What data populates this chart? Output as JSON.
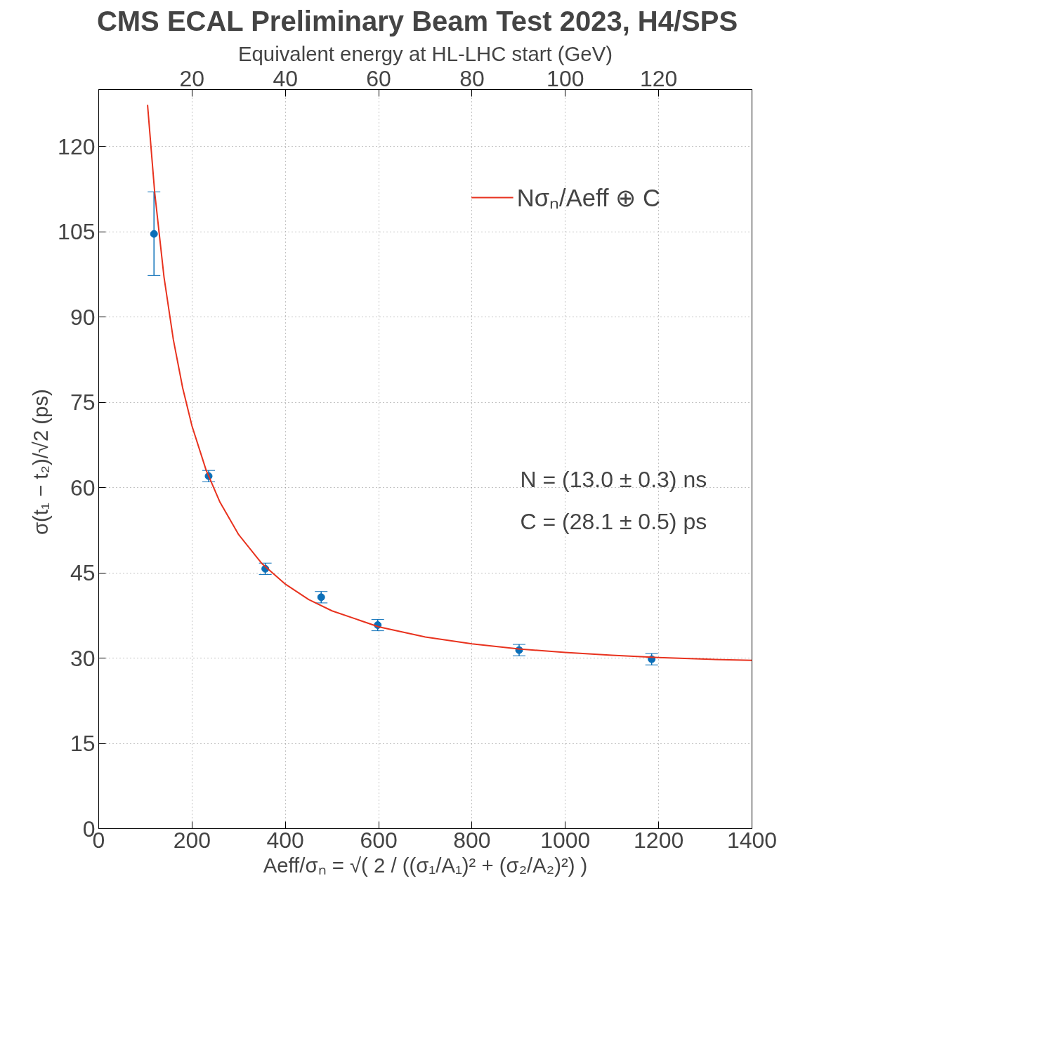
{
  "chart_data": {
    "type": "scatter",
    "title": "CMS ECAL Preliminary   Beam Test 2023, H4/SPS",
    "x2label": "Equivalent energy at HL-LHC start (GeV)",
    "xlabel": "Aeff/σₙ = √( 2 / ((σ₁/A₁)² + (σ₂/A₂)²) )",
    "ylabel": "σ(t₁ − t₂)/√2  (ps)",
    "x": [
      118.5,
      235.6,
      357,
      476.8,
      598,
      901,
      1185
    ],
    "series": [
      {
        "color": "#0b6fb8",
        "values": [
          104.6,
          62.0,
          45.7,
          40.7,
          35.8,
          31.4,
          29.8
        ],
        "errors": [
          [
            97.3,
            112.0
          ],
          1,
          1,
          1,
          1,
          1,
          1
        ]
      },
      {
        "type": "line",
        "marker": "none",
        "name": "Nσₙ/Aeff ⊕ C",
        "color": "#e8321e",
        "x": [
          104.7,
          120,
          140,
          160,
          180,
          200,
          230,
          260,
          300,
          350,
          400,
          450,
          500,
          600,
          700,
          800,
          900,
          1000,
          1100,
          1200,
          1300,
          1400
        ],
        "values": [
          127.3,
          111.9,
          97.0,
          86.0,
          77.5,
          70.8,
          63.1,
          57.4,
          51.7,
          46.6,
          43.0,
          40.3,
          38.3,
          35.5,
          33.7,
          32.5,
          31.6,
          31.0,
          30.5,
          30.1,
          29.8,
          29.6
        ]
      }
    ],
    "annotations": [
      "N = (13.0 ± 0.3) ns",
      "C = (28.1 ± 0.5) ps"
    ],
    "xlim": [
      0,
      1400
    ],
    "xticks": [
      0,
      200,
      400,
      600,
      800,
      1000,
      1200,
      1400
    ],
    "x2lim": [
      0,
      140
    ],
    "x2ticks": [
      20,
      40,
      60,
      80,
      100,
      120
    ],
    "ylim": [
      0,
      130
    ],
    "yticks": [
      0,
      15,
      30,
      45,
      60,
      75,
      90,
      105,
      120
    ],
    "grid": true,
    "legend": "top right",
    "marker": "circle",
    "line_style": "solid"
  }
}
